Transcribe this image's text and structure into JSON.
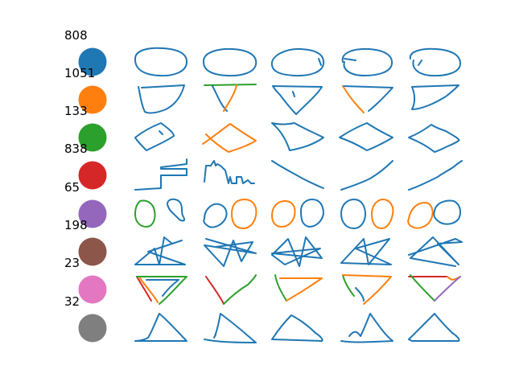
{
  "rows": [
    {
      "count": "808",
      "color": "#1f77b4"
    },
    {
      "count": "1051",
      "color": "#ff7f0e"
    },
    {
      "count": "133",
      "color": "#2ca02c"
    },
    {
      "count": "838",
      "color": "#d62728"
    },
    {
      "count": "65",
      "color": "#9467bd"
    },
    {
      "count": "198",
      "color": "#8c564b"
    },
    {
      "count": "23",
      "color": "#e377c2"
    },
    {
      "count": "32",
      "color": "#7f7f7f"
    }
  ],
  "stroke_palette": {
    "blue": "#1f77b4",
    "orange": "#ff7f0e",
    "green": "#2ca02c",
    "red": "#d62728",
    "purple": "#9467bd"
  },
  "sketch_icons": [
    "ellipse-sketch-icon",
    "inverted-triangle-sketch-icon",
    "rhombus-sketch-icon",
    "zigzag-line-sketch-icon",
    "double-circle-sketch-icon",
    "star-sketch-icon",
    "colored-inverted-triangle-sketch-icon",
    "triangle-sketch-icon"
  ]
}
